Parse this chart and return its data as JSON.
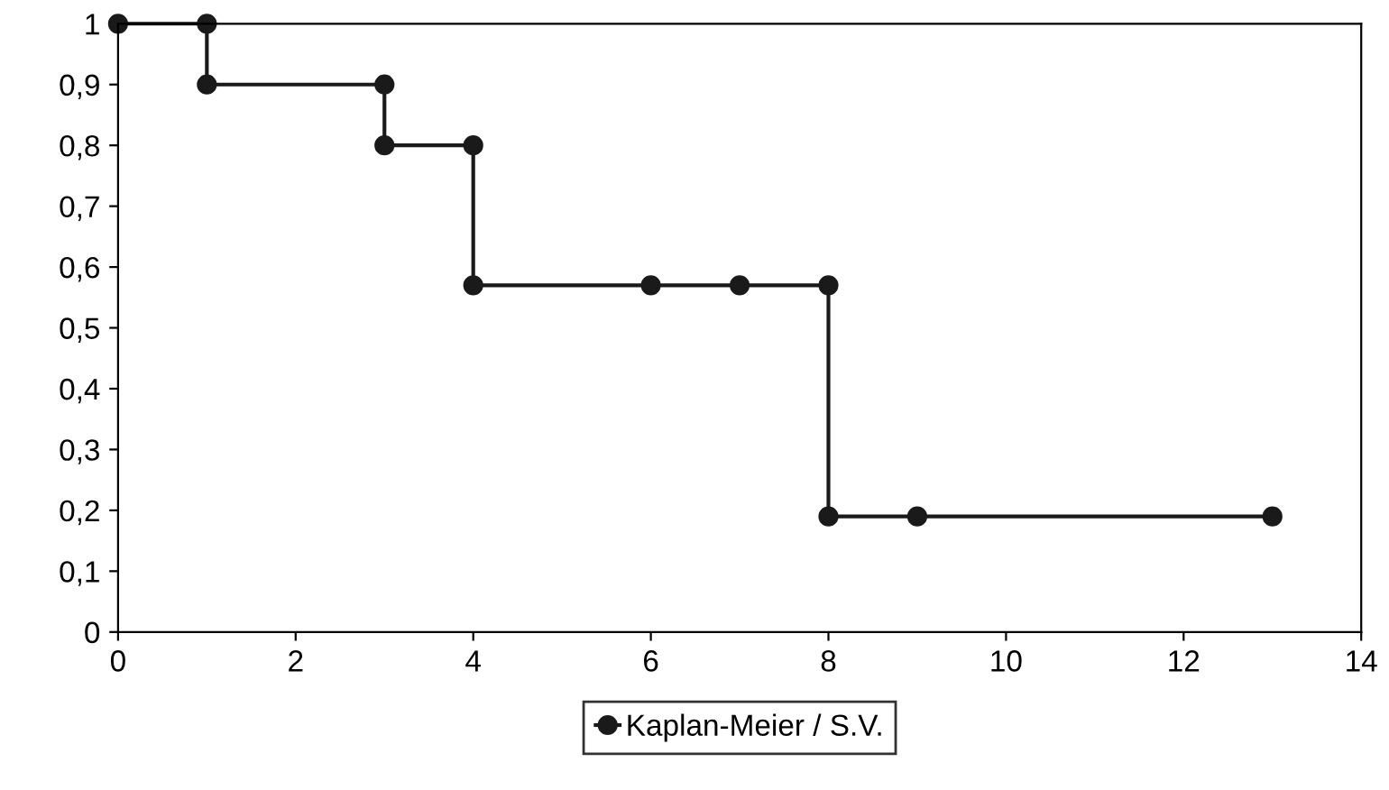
{
  "chart_data": {
    "type": "line",
    "x": [
      0,
      1,
      1,
      3,
      3,
      4,
      4,
      6,
      7,
      8,
      8,
      9,
      13
    ],
    "series": [
      {
        "name": "Kaplan-Meier / S.V.",
        "color": "#1a1a1a",
        "values": [
          1,
          1,
          0.9,
          0.9,
          0.8,
          0.8,
          0.57,
          0.57,
          0.57,
          0.57,
          0.19,
          0.19,
          0.19
        ]
      }
    ],
    "xlim": [
      0,
      14
    ],
    "xticks": [
      0,
      2,
      4,
      6,
      8,
      10,
      12,
      14
    ],
    "ylim": [
      0,
      1
    ],
    "yticks": [
      0,
      {
        "value": 0.1,
        "label": "0,1"
      },
      {
        "value": 0.2,
        "label": "0,2"
      },
      {
        "value": 0.3,
        "label": "0,3"
      },
      {
        "value": 0.4,
        "label": "0,4"
      },
      {
        "value": 0.5,
        "label": "0,5"
      },
      {
        "value": 0.6,
        "label": "0,6"
      },
      {
        "value": 0.7,
        "label": "0,7"
      },
      {
        "value": 0.8,
        "label": "0,8"
      },
      {
        "value": 0.9,
        "label": "0,9"
      },
      1
    ],
    "grid": false,
    "legend": "bottom",
    "marker": "circle",
    "line_style": "solid"
  }
}
